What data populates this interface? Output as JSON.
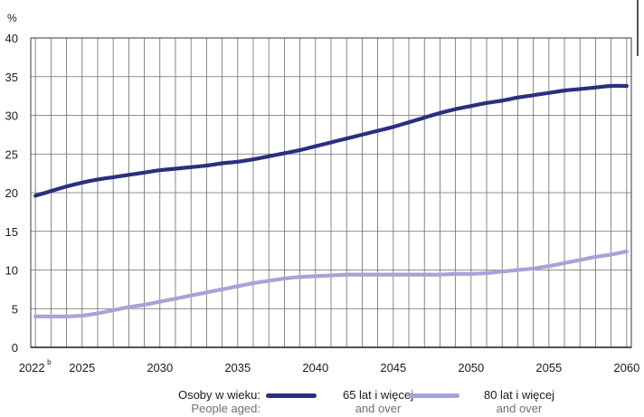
{
  "chart_data": {
    "type": "line",
    "ylabel": "%",
    "ylim": [
      0,
      40
    ],
    "yticks": [
      0,
      5,
      10,
      15,
      20,
      25,
      30,
      35,
      40
    ],
    "xlim": [
      2022,
      2060
    ],
    "xticks": [
      {
        "value": 2022,
        "label": "2022",
        "sup": "b"
      },
      {
        "value": 2025,
        "label": "2025"
      },
      {
        "value": 2030,
        "label": "2030"
      },
      {
        "value": 2035,
        "label": "2035"
      },
      {
        "value": 2040,
        "label": "2040"
      },
      {
        "value": 2045,
        "label": "2045"
      },
      {
        "value": 2050,
        "label": "2050"
      },
      {
        "value": 2055,
        "label": "2055"
      },
      {
        "value": 2060,
        "label": "2060"
      }
    ],
    "grid": true,
    "legend_placement": "bottom",
    "legend_title": {
      "main": "Osoby w wieku:",
      "sub": "People aged:"
    },
    "series": [
      {
        "name": "65 lat i więcej",
        "name_en": "and over",
        "color": "#2b2f7e",
        "x": [
          2022,
          2023,
          2024,
          2025,
          2026,
          2027,
          2028,
          2029,
          2030,
          2031,
          2032,
          2033,
          2034,
          2035,
          2036,
          2037,
          2038,
          2039,
          2040,
          2041,
          2042,
          2043,
          2044,
          2045,
          2046,
          2047,
          2048,
          2049,
          2050,
          2051,
          2052,
          2053,
          2054,
          2055,
          2056,
          2057,
          2058,
          2059,
          2060
        ],
        "values": [
          19.6,
          20.2,
          20.8,
          21.3,
          21.7,
          22.0,
          22.3,
          22.6,
          22.9,
          23.1,
          23.3,
          23.5,
          23.8,
          24.0,
          24.3,
          24.7,
          25.1,
          25.5,
          26.0,
          26.5,
          27.0,
          27.5,
          28.0,
          28.5,
          29.1,
          29.7,
          30.3,
          30.8,
          31.2,
          31.6,
          31.9,
          32.3,
          32.6,
          32.9,
          33.2,
          33.4,
          33.6,
          33.8,
          33.8
        ]
      },
      {
        "name": "80 lat i więcej",
        "name_en": "and over",
        "color": "#a5a4d9",
        "x": [
          2022,
          2023,
          2024,
          2025,
          2026,
          2027,
          2028,
          2029,
          2030,
          2031,
          2032,
          2033,
          2034,
          2035,
          2036,
          2037,
          2038,
          2039,
          2040,
          2041,
          2042,
          2043,
          2044,
          2045,
          2046,
          2047,
          2048,
          2049,
          2050,
          2051,
          2052,
          2053,
          2054,
          2055,
          2056,
          2057,
          2058,
          2059,
          2060
        ],
        "values": [
          4.0,
          4.0,
          4.0,
          4.1,
          4.4,
          4.8,
          5.2,
          5.5,
          5.9,
          6.3,
          6.7,
          7.1,
          7.5,
          7.9,
          8.3,
          8.6,
          8.9,
          9.1,
          9.2,
          9.3,
          9.4,
          9.4,
          9.4,
          9.4,
          9.4,
          9.4,
          9.4,
          9.5,
          9.5,
          9.6,
          9.8,
          10.0,
          10.2,
          10.5,
          10.9,
          11.3,
          11.7,
          12.0,
          12.4
        ]
      }
    ]
  }
}
